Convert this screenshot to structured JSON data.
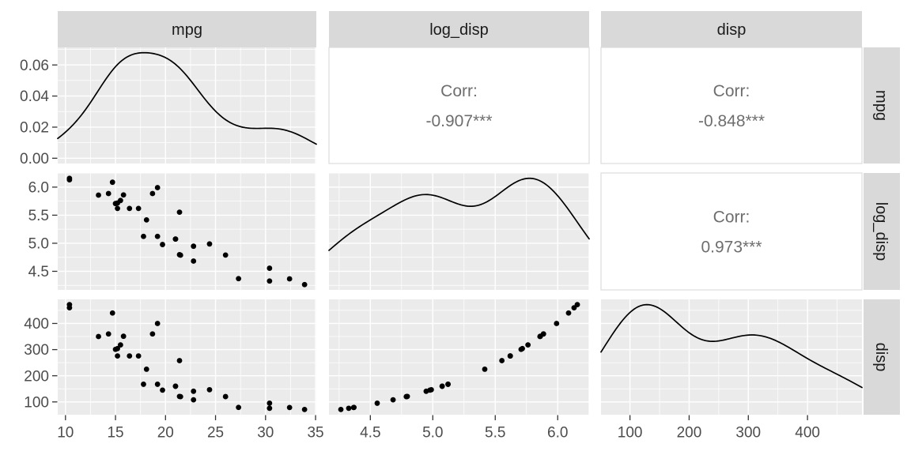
{
  "chart_data": {
    "type": "scatter",
    "subtype": "scatterplot-matrix-ggpairs",
    "title": "",
    "variables": [
      "mpg",
      "log_disp",
      "disp"
    ],
    "strip_labels_top": [
      "mpg",
      "log_disp",
      "disp"
    ],
    "strip_labels_right": [
      "mpg",
      "log_disp",
      "disp"
    ],
    "n_points": 32,
    "data": {
      "mpg": [
        21.0,
        21.0,
        22.8,
        21.4,
        18.7,
        18.1,
        14.3,
        24.4,
        22.8,
        19.2,
        17.8,
        16.4,
        17.3,
        15.2,
        10.4,
        10.4,
        14.7,
        32.4,
        30.4,
        33.9,
        21.5,
        15.5,
        15.2,
        13.3,
        19.2,
        27.3,
        26.0,
        30.4,
        15.8,
        19.7,
        15.0,
        21.4
      ],
      "log_disp": [
        5.075,
        5.075,
        4.682,
        5.553,
        5.886,
        5.416,
        5.886,
        4.988,
        4.947,
        5.122,
        5.122,
        5.62,
        5.62,
        5.62,
        6.157,
        6.131,
        6.087,
        4.366,
        4.327,
        4.264,
        4.788,
        5.762,
        5.717,
        5.858,
        5.991,
        4.369,
        4.79,
        4.555,
        5.861,
        4.977,
        5.707,
        4.796
      ],
      "disp": [
        160.0,
        160.0,
        108.0,
        258.0,
        360.0,
        225.0,
        360.0,
        146.7,
        140.8,
        167.6,
        167.6,
        275.8,
        275.8,
        275.8,
        472.0,
        460.0,
        440.0,
        78.7,
        75.7,
        71.1,
        120.1,
        318.0,
        304.0,
        350.0,
        400.0,
        79.0,
        120.3,
        95.1,
        351.0,
        145.0,
        301.0,
        121.0
      ]
    },
    "axes": {
      "mpg": {
        "domain": [
          9.225,
          35.075
        ],
        "major": [
          10,
          15,
          20,
          25,
          30,
          35
        ],
        "minor": [
          12.5,
          17.5,
          22.5,
          27.5,
          32.5
        ],
        "labels": [
          "10",
          "15",
          "20",
          "25",
          "30",
          "35"
        ]
      },
      "log_disp": {
        "domain": [
          4.1688,
          6.2517
        ],
        "major": [
          4.5,
          5.0,
          5.5,
          6.0
        ],
        "minor": [
          4.25,
          4.75,
          5.25,
          5.75,
          6.25
        ],
        "labels": [
          "4.5",
          "5.0",
          "5.5",
          "6.0"
        ]
      },
      "disp": {
        "domain": [
          51.06,
          492.05
        ],
        "major": [
          100,
          200,
          300,
          400
        ],
        "minor": [
          50,
          150,
          250,
          350,
          450
        ],
        "labels": [
          "100",
          "200",
          "300",
          "400"
        ]
      },
      "density_row1": {
        "major": [
          0,
          0.02,
          0.04,
          0.06
        ],
        "minor": [
          0.01,
          0.03,
          0.05,
          0.07
        ],
        "labels": [
          "0.00",
          "0.02",
          "0.04",
          "0.06"
        ]
      }
    },
    "corr_prefix": "Corr:",
    "correlations": {
      "mpg_vs_log_disp": "-0.907***",
      "mpg_vs_disp": "-0.848***",
      "log_disp_vs_disp": "0.973***"
    },
    "panels": [
      [
        {
          "type": "density",
          "var": "mpg"
        },
        {
          "type": "corr",
          "value": "-0.907***"
        },
        {
          "type": "corr",
          "value": "-0.848***"
        }
      ],
      [
        {
          "type": "scatter",
          "x": "mpg",
          "y": "log_disp"
        },
        {
          "type": "density",
          "var": "log_disp"
        },
        {
          "type": "corr",
          "value": "0.973***"
        }
      ],
      [
        {
          "type": "scatter",
          "x": "mpg",
          "y": "disp"
        },
        {
          "type": "scatter",
          "x": "log_disp",
          "y": "disp"
        },
        {
          "type": "density",
          "var": "disp"
        }
      ]
    ],
    "legend": null,
    "grid": true,
    "colors": {
      "background": "#FFFFFF",
      "panel_background": "#EBEBEB",
      "grid_line": "#FFFFFF",
      "strip_background": "#D9D9D9",
      "strip_text": "#1A1A1A",
      "axis_text": "#4D4D4D",
      "tick_mark": "#333333",
      "corr_text": "#6E6E6E",
      "corr_panel_background": "#FFFFFF",
      "corr_panel_border": "#DBDBDB",
      "point": "#000000",
      "density_line": "#000000"
    }
  }
}
